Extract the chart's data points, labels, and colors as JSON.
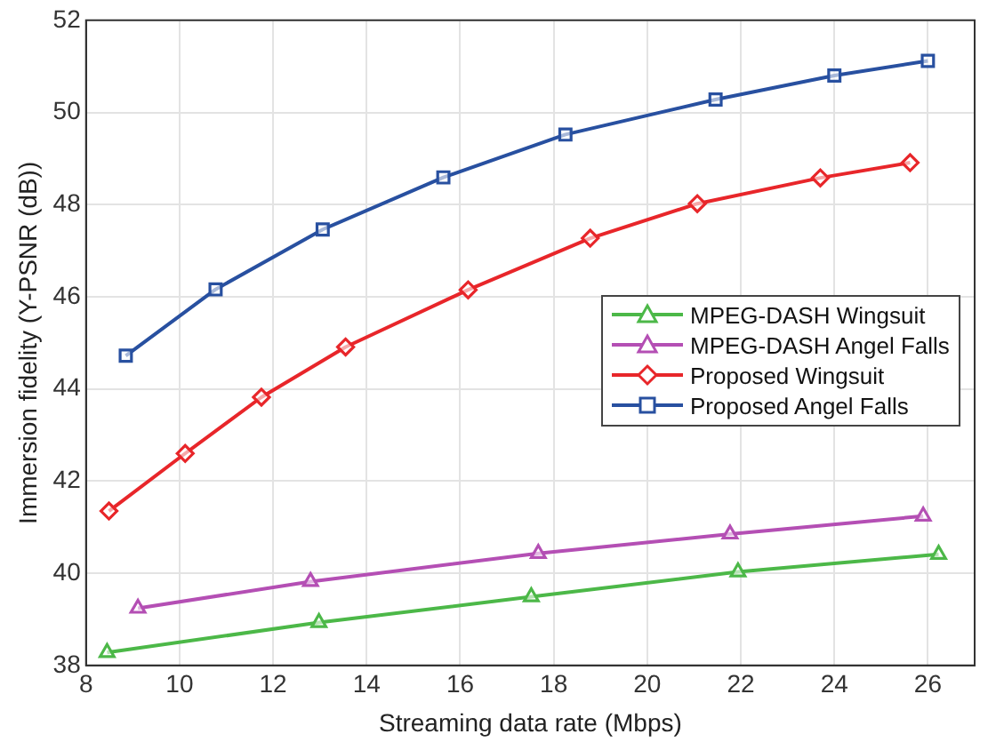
{
  "chart_data": {
    "type": "line",
    "xlabel": "Streaming data rate (Mbps)",
    "ylabel": "Immersion fidelity (Y-PSNR (dB))",
    "xlim": [
      8,
      27
    ],
    "xticks": [
      8,
      10,
      12,
      14,
      16,
      18,
      20,
      22,
      24,
      26
    ],
    "ylim": [
      38,
      52
    ],
    "yticks": [
      38,
      40,
      42,
      44,
      46,
      48,
      50,
      52
    ],
    "grid": true,
    "legend": "right",
    "line_style": "solid",
    "series": [
      {
        "name": "MPEG-DASH Wingsuit",
        "color": "#4cb848",
        "marker": "triangle",
        "x": [
          8.45,
          12.98,
          17.52,
          21.94,
          26.23
        ],
        "values": [
          38.28,
          38.93,
          39.49,
          40.03,
          40.41
        ]
      },
      {
        "name": "MPEG-DASH Angel Falls",
        "color": "#b44fb4",
        "marker": "triangle",
        "x": [
          9.11,
          12.8,
          17.67,
          21.77,
          25.9
        ],
        "values": [
          39.24,
          39.82,
          40.43,
          40.85,
          41.24
        ]
      },
      {
        "name": "Proposed Wingsuit",
        "color": "#e8262a",
        "marker": "diamond",
        "x": [
          8.49,
          10.12,
          11.75,
          13.55,
          16.17,
          18.78,
          21.07,
          23.7,
          25.62
        ],
        "values": [
          41.35,
          42.6,
          43.82,
          44.91,
          46.15,
          47.27,
          48.02,
          48.58,
          48.91
        ]
      },
      {
        "name": "Proposed Angel Falls",
        "color": "#2850a0",
        "marker": "square",
        "x": [
          8.85,
          10.77,
          13.06,
          15.64,
          18.25,
          21.46,
          24.0,
          26.0
        ],
        "values": [
          44.72,
          46.16,
          47.46,
          48.59,
          49.52,
          50.28,
          50.8,
          51.12
        ]
      }
    ]
  }
}
